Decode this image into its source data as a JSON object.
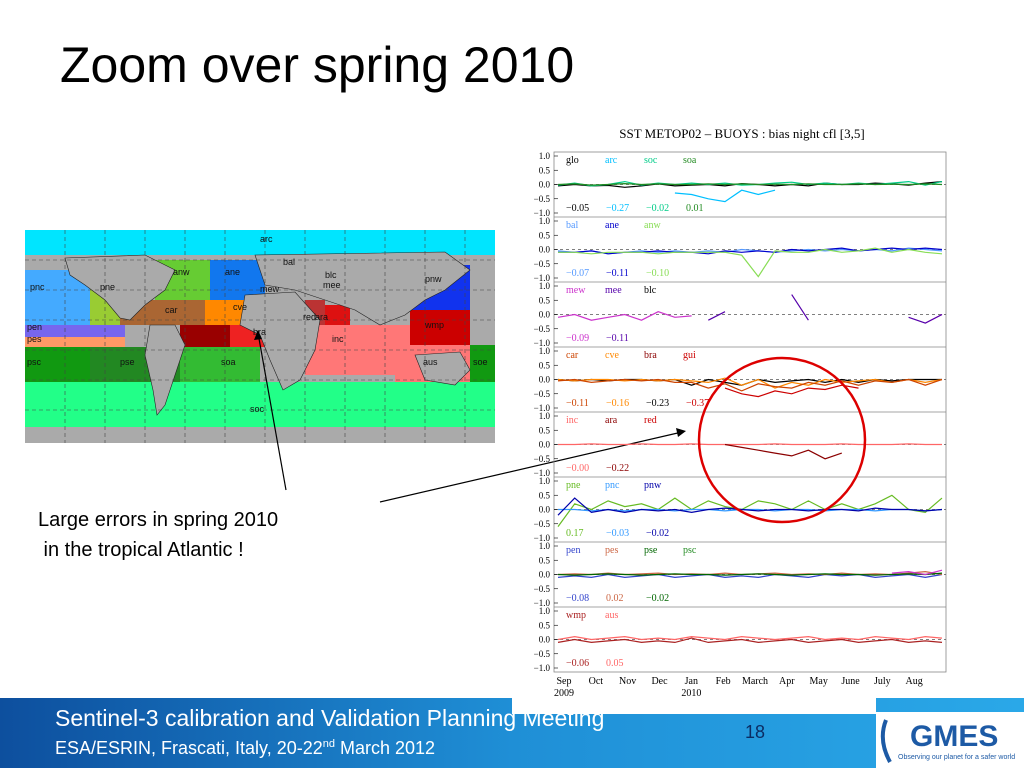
{
  "slide": {
    "title": "Zoom over spring 2010",
    "callout_line1": "Large errors in spring 2010",
    "callout_line2": " in the tropical Atlantic !"
  },
  "map": {
    "region_labels": [
      "arc",
      "bal",
      "anw",
      "ane",
      "pnw",
      "pne",
      "mew",
      "mee",
      "blc",
      "pnc",
      "car",
      "cve",
      "red",
      "pen",
      "pes",
      "inc",
      "wmp",
      "psc",
      "pse",
      "soa",
      "ara",
      "soc",
      "aus",
      "soe",
      "bra"
    ]
  },
  "footer": {
    "line1": "Sentinel-3 calibration and Validation Planning Meeting",
    "line2_main": "ESA/ESRIN, Frascati, Italy, 20-22",
    "line2_sup": "nd",
    "line2_end": " March 2012",
    "page_number": "18",
    "logo": "GMES",
    "logo_tagline": "Observing our planet for a safer world"
  },
  "chart_data": {
    "type": "line",
    "title": "SST  METOP02 – BUOYS : bias   night  cfl [3,5]",
    "x_ticks": [
      "Sep",
      "Oct",
      "Nov",
      "Dec",
      "Jan",
      "Feb",
      "March",
      "Apr",
      "May",
      "June",
      "July",
      "Aug"
    ],
    "x_subticks": {
      "Sep": "2009",
      "Jan": "2010"
    },
    "y_ticks": [
      "1.0",
      "0.5",
      "0.0",
      "−0.5",
      "−1.0"
    ],
    "ylim": [
      -1.0,
      1.0
    ],
    "panels": [
      {
        "labels": [
          {
            "text": "glo",
            "color": "#000000"
          },
          {
            "text": "arc",
            "color": "#00bfff"
          },
          {
            "text": "soc",
            "color": "#00cc88"
          },
          {
            "text": "soa",
            "color": "#228b22"
          }
        ],
        "values": [
          {
            "text": "−0.05",
            "color": "#000000"
          },
          {
            "text": "−0.27",
            "color": "#00bfff"
          },
          {
            "text": "−0.02",
            "color": "#00cc88"
          },
          {
            "text": "0.01",
            "color": "#228b22"
          }
        ],
        "series": [
          {
            "color": "#000000",
            "y": [
              -0.05,
              0.0,
              -0.05,
              -0.03,
              -0.1,
              -0.05,
              0.02,
              -0.05,
              -0.02,
              0.0,
              -0.05,
              0.03,
              0.0,
              -0.05,
              0.0,
              -0.05,
              0.05,
              0.0,
              0.0,
              0.05,
              0.02,
              -0.02,
              0.05,
              0.1
            ]
          },
          {
            "color": "#00bfff",
            "y": [
              null,
              null,
              null,
              null,
              null,
              null,
              null,
              -0.3,
              -0.35,
              -0.5,
              -0.6,
              -0.2,
              -0.35,
              -0.2,
              null,
              null,
              null,
              null,
              null,
              null,
              null,
              null,
              null,
              null
            ]
          },
          {
            "color": "#00cc88",
            "y": [
              -0.02,
              0.05,
              -0.05,
              0.0,
              0.1,
              -0.02,
              0.05,
              0.0,
              0.05,
              0.0,
              0.05,
              -0.02,
              0.0,
              0.05,
              0.08,
              0.0,
              0.05,
              0.0,
              0.05,
              0.0,
              0.05,
              0.1,
              -0.02,
              0.1
            ]
          },
          {
            "color": "#228b22",
            "y": [
              0.0,
              0.02,
              -0.02,
              0.0,
              0.03,
              0.0,
              0.02,
              0.0,
              0.0,
              0.02,
              0.0,
              0.02,
              0.0,
              0.01,
              0.0,
              0.02,
              0.0,
              0.0,
              0.02,
              0.0,
              0.01,
              0.0,
              0.02,
              0.0
            ]
          }
        ]
      },
      {
        "labels": [
          {
            "text": "bal",
            "color": "#5599ff"
          },
          {
            "text": "ane",
            "color": "#0000cc"
          },
          {
            "text": "anw",
            "color": "#88dd55"
          }
        ],
        "values": [
          {
            "text": "−0.07",
            "color": "#5599ff"
          },
          {
            "text": "−0.11",
            "color": "#0000cc"
          },
          {
            "text": "−0.10",
            "color": "#88dd55"
          }
        ],
        "series": [
          {
            "color": "#5599ff",
            "y": [
              -0.05,
              -0.1,
              -0.05,
              -0.15,
              -0.1,
              -0.05,
              -0.1,
              -0.05,
              -0.1,
              -0.05,
              -0.1,
              0.0,
              -0.05,
              -0.1,
              -0.05,
              0.0,
              -0.05,
              0.0,
              -0.05,
              0.0,
              -0.05,
              0.05,
              0.0,
              -0.05
            ]
          },
          {
            "color": "#0000cc",
            "y": [
              -0.1,
              -0.1,
              -0.05,
              -0.15,
              -0.1,
              -0.1,
              -0.05,
              -0.1,
              -0.1,
              -0.15,
              -0.05,
              -0.1,
              -0.05,
              -0.1,
              0.0,
              -0.05,
              0.0,
              0.05,
              -0.05,
              0.0,
              0.05,
              0.0,
              0.05,
              0.0
            ]
          },
          {
            "color": "#88dd55",
            "y": [
              -0.1,
              -0.1,
              -0.15,
              -0.1,
              -0.1,
              -0.1,
              -0.15,
              -0.1,
              -0.1,
              -0.1,
              -0.1,
              -0.2,
              -0.95,
              -0.05,
              -0.1,
              -0.1,
              0.0,
              -0.1,
              -0.05,
              0.05,
              -0.1,
              0.0,
              -0.1,
              -0.15
            ]
          }
        ]
      },
      {
        "labels": [
          {
            "text": "mew",
            "color": "#cc33cc"
          },
          {
            "text": "mee",
            "color": "#5500aa"
          },
          {
            "text": "blc",
            "color": "#000000"
          }
        ],
        "values": [
          {
            "text": "−0.09",
            "color": "#cc33cc"
          },
          {
            "text": "−0.11",
            "color": "#5500aa"
          }
        ],
        "series": [
          {
            "color": "#cc33cc",
            "y": [
              -0.1,
              0.0,
              -0.2,
              -0.1,
              0.0,
              -0.2,
              0.1,
              -0.1,
              -0.05,
              null,
              null,
              null,
              null,
              null,
              null,
              null,
              null,
              null,
              null,
              null,
              null,
              null,
              -0.3,
              0.0
            ]
          },
          {
            "color": "#5500aa",
            "y": [
              null,
              null,
              null,
              null,
              null,
              null,
              null,
              null,
              null,
              -0.2,
              0.1,
              null,
              null,
              null,
              0.7,
              -0.2,
              null,
              null,
              null,
              null,
              null,
              -0.1,
              -0.3,
              0.0
            ]
          }
        ]
      },
      {
        "labels": [
          {
            "text": "car",
            "color": "#cc4400"
          },
          {
            "text": "cve",
            "color": "#ff8800"
          },
          {
            "text": "bra",
            "color": "#8b0000"
          },
          {
            "text": "gui",
            "color": "#cc0000"
          }
        ],
        "values": [
          {
            "text": "−0.11",
            "color": "#cc4400"
          },
          {
            "text": "−0.16",
            "color": "#ff8800"
          },
          {
            "text": "−0.23",
            "color": "#000000"
          },
          {
            "text": "−0.37",
            "color": "#cc0000"
          }
        ],
        "series": [
          {
            "color": "#000000",
            "y": [
              0.0,
              -0.05,
              0.0,
              -0.05,
              0.0,
              0.0,
              -0.05,
              0.0,
              -0.2,
              0.0,
              -0.1,
              -0.2,
              0.0,
              -0.1,
              -0.05,
              0.0,
              -0.1,
              0.0,
              -0.1,
              0.0,
              -0.05,
              0.0,
              0.0,
              0.0
            ]
          },
          {
            "color": "#ff8800",
            "y": [
              0.0,
              -0.05,
              0.0,
              0.0,
              -0.05,
              0.0,
              -0.05,
              0.0,
              -0.05,
              -0.1,
              0.05,
              -0.2,
              0.0,
              -0.3,
              -0.1,
              -0.2,
              0.0,
              -0.1,
              -0.05,
              0.0,
              -0.1,
              0.0,
              -0.1,
              0.0
            ]
          },
          {
            "color": "#cc4400",
            "y": [
              -0.05,
              0.0,
              -0.1,
              -0.05,
              0.0,
              -0.05,
              0.0,
              -0.1,
              -0.1,
              -0.3,
              -0.15,
              -0.4,
              -0.15,
              -0.25,
              -0.3,
              -0.1,
              -0.2,
              -0.05,
              -0.2,
              -0.05,
              -0.1,
              0.0,
              -0.2,
              0.0
            ]
          },
          {
            "color": "#cc0000",
            "y": [
              null,
              null,
              null,
              null,
              null,
              null,
              null,
              null,
              null,
              null,
              -0.3,
              -0.5,
              -0.6,
              -0.4,
              -0.5,
              -0.3,
              -0.35,
              -0.2,
              -0.3,
              null,
              null,
              null,
              null,
              null
            ]
          }
        ]
      },
      {
        "labels": [
          {
            "text": "inc",
            "color": "#ff6666"
          },
          {
            "text": "ara",
            "color": "#8b0000"
          },
          {
            "text": "red",
            "color": "#cc0000"
          }
        ],
        "values": [
          {
            "text": "−0.00",
            "color": "#ff6666"
          },
          {
            "text": "−0.22",
            "color": "#8b0000"
          }
        ],
        "series": [
          {
            "color": "#ff6666",
            "y": [
              0.0,
              0.0,
              0.02,
              0.0,
              0.0,
              0.02,
              0.0,
              0.0,
              0.02,
              0.0,
              0.0,
              0.0,
              0.0,
              0.02,
              0.0,
              0.0,
              0.0,
              0.02,
              0.0,
              0.0,
              0.0,
              0.02,
              0.0,
              0.0
            ]
          },
          {
            "color": "#8b0000",
            "y": [
              null,
              null,
              null,
              null,
              null,
              null,
              null,
              null,
              null,
              null,
              0.0,
              -0.1,
              -0.2,
              -0.3,
              -0.4,
              -0.2,
              -0.5,
              -0.3,
              null,
              null,
              null,
              null,
              null,
              null
            ]
          }
        ]
      },
      {
        "labels": [
          {
            "text": "pne",
            "color": "#66bb22"
          },
          {
            "text": "pnc",
            "color": "#3399ff"
          },
          {
            "text": "pnw",
            "color": "#0000aa"
          }
        ],
        "values": [
          {
            "text": "0.17",
            "color": "#66bb22"
          },
          {
            "text": "−0.03",
            "color": "#3399ff"
          },
          {
            "text": "−0.02",
            "color": "#0000aa"
          }
        ],
        "series": [
          {
            "color": "#66bb22",
            "y": [
              -0.6,
              0.2,
              0.0,
              0.3,
              0.1,
              0.2,
              0.0,
              0.4,
              0.0,
              0.3,
              0.1,
              0.0,
              0.3,
              0.2,
              0.0,
              0.3,
              0.0,
              0.2,
              0.0,
              0.2,
              0.5,
              0.0,
              -0.1,
              0.4
            ]
          },
          {
            "color": "#3399ff",
            "y": [
              0.0,
              0.0,
              -0.05,
              0.0,
              -0.05,
              0.0,
              0.0,
              -0.05,
              0.0,
              0.0,
              -0.05,
              0.0,
              0.0,
              -0.05,
              0.0,
              0.0,
              -0.05,
              0.0,
              0.0,
              -0.05,
              0.0,
              0.0,
              -0.05,
              0.0
            ]
          },
          {
            "color": "#0000aa",
            "y": [
              -0.2,
              0.4,
              -0.1,
              0.0,
              -0.1,
              0.0,
              -0.05,
              0.0,
              -0.1,
              0.0,
              0.05,
              0.0,
              -0.05,
              0.0,
              0.0,
              -0.05,
              0.0,
              0.0,
              -0.05,
              0.05,
              0.0,
              0.0,
              -0.05,
              0.0
            ]
          }
        ]
      },
      {
        "labels": [
          {
            "text": "pen",
            "color": "#3344cc"
          },
          {
            "text": "pes",
            "color": "#cc6644"
          },
          {
            "text": "pse",
            "color": "#006600"
          },
          {
            "text": "psc",
            "color": "#228b22"
          }
        ],
        "values": [
          {
            "text": "−0.08",
            "color": "#3344cc"
          },
          {
            "text": "0.02",
            "color": "#cc6644"
          },
          {
            "text": "−0.02",
            "color": "#006600"
          }
        ],
        "series": [
          {
            "color": "#3344cc",
            "y": [
              -0.1,
              -0.05,
              -0.1,
              0.0,
              -0.1,
              -0.05,
              0.0,
              -0.1,
              -0.05,
              0.0,
              -0.1,
              -0.05,
              -0.1,
              0.0,
              -0.05,
              -0.1,
              0.0,
              -0.05,
              0.0,
              -0.1,
              -0.05,
              0.0,
              -0.1,
              0.0
            ]
          },
          {
            "color": "#cc6644",
            "y": [
              0.0,
              0.02,
              0.0,
              0.05,
              0.0,
              0.02,
              0.05,
              0.0,
              0.02,
              0.0,
              0.05,
              0.0,
              0.02,
              0.05,
              0.0,
              0.02,
              0.0,
              0.05,
              0.0,
              0.02,
              0.0,
              0.05,
              0.1,
              0.0
            ]
          },
          {
            "color": "#006600",
            "y": [
              0.0,
              -0.02,
              0.0,
              0.02,
              0.0,
              -0.02,
              0.0,
              0.02,
              0.0,
              0.0,
              -0.02,
              0.0,
              0.02,
              0.0,
              -0.02,
              0.0,
              0.02,
              0.0,
              0.0,
              -0.02,
              0.0,
              0.02,
              0.0,
              0.05
            ]
          },
          {
            "color": "#cc33cc",
            "y": [
              null,
              null,
              null,
              null,
              null,
              null,
              null,
              null,
              null,
              null,
              null,
              null,
              null,
              null,
              null,
              null,
              null,
              null,
              null,
              null,
              0.05,
              0.1,
              0.0,
              0.15
            ]
          }
        ]
      },
      {
        "labels": [
          {
            "text": "wmp",
            "color": "#aa2222"
          },
          {
            "text": "aus",
            "color": "#ff6666"
          }
        ],
        "values": [
          {
            "text": "−0.06",
            "color": "#aa2222"
          },
          {
            "text": "0.05",
            "color": "#ff6666"
          }
        ],
        "series": [
          {
            "color": "#aa2222",
            "y": [
              -0.1,
              0.0,
              -0.1,
              -0.05,
              0.0,
              -0.1,
              -0.05,
              -0.1,
              0.05,
              -0.1,
              -0.05,
              0.0,
              -0.1,
              -0.05,
              0.0,
              -0.1,
              -0.05,
              0.0,
              -0.1,
              -0.05,
              0.0,
              -0.1,
              -0.05,
              -0.1
            ]
          },
          {
            "color": "#ff6666",
            "y": [
              0.0,
              0.1,
              0.0,
              0.05,
              0.1,
              0.0,
              0.05,
              0.0,
              0.1,
              0.05,
              0.0,
              0.1,
              0.05,
              0.0,
              0.05,
              0.1,
              0.0,
              0.05,
              0.0,
              0.1,
              0.05,
              0.0,
              0.1,
              0.05
            ]
          }
        ]
      }
    ],
    "annotation_circle_color": "#dd0000"
  }
}
